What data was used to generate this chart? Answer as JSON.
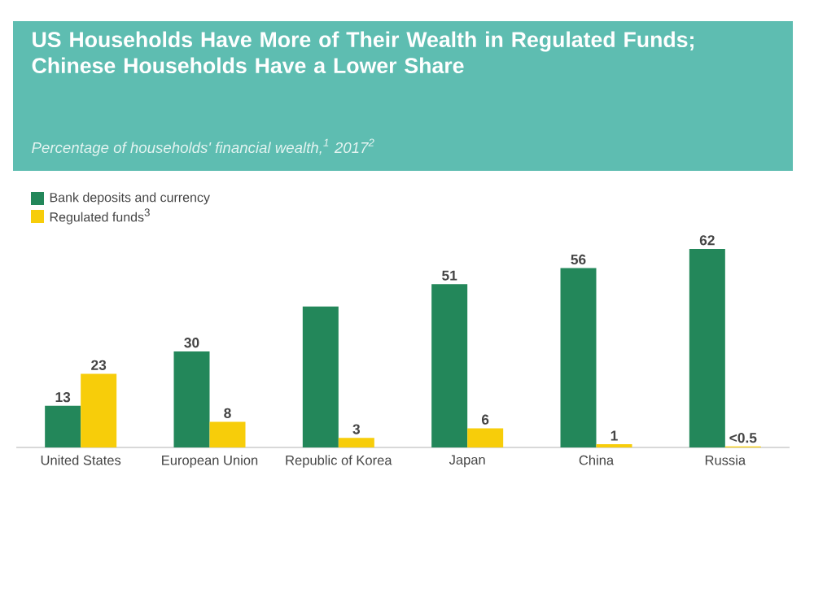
{
  "chart_data": {
    "type": "bar",
    "title": "US Households Have More of Their Wealth in Regulated Funds; Chinese Households Have a Lower Share",
    "subtitle": "Percentage of households' financial wealth,$^{1}$ 2017$^{2}$",
    "categories": [
      "United States",
      "European Union",
      "Republic of Korea",
      "Japan",
      "China",
      "Russia"
    ],
    "series": [
      {
        "name": "Bank deposits and currency",
        "color": "#23875a",
        "values": [
          13,
          30,
          44,
          51,
          56,
          62
        ],
        "value_labels": [
          "13",
          "30",
          null,
          "51",
          "56",
          "62"
        ]
      },
      {
        "name": "Regulated funds$^{3}$",
        "color": "#f7cd0a",
        "values": [
          23,
          8,
          3,
          6,
          1,
          0.3
        ],
        "value_labels": [
          "23",
          "8",
          "3",
          "6",
          "1",
          "<0.5"
        ]
      }
    ],
    "legend": "top left"
  }
}
